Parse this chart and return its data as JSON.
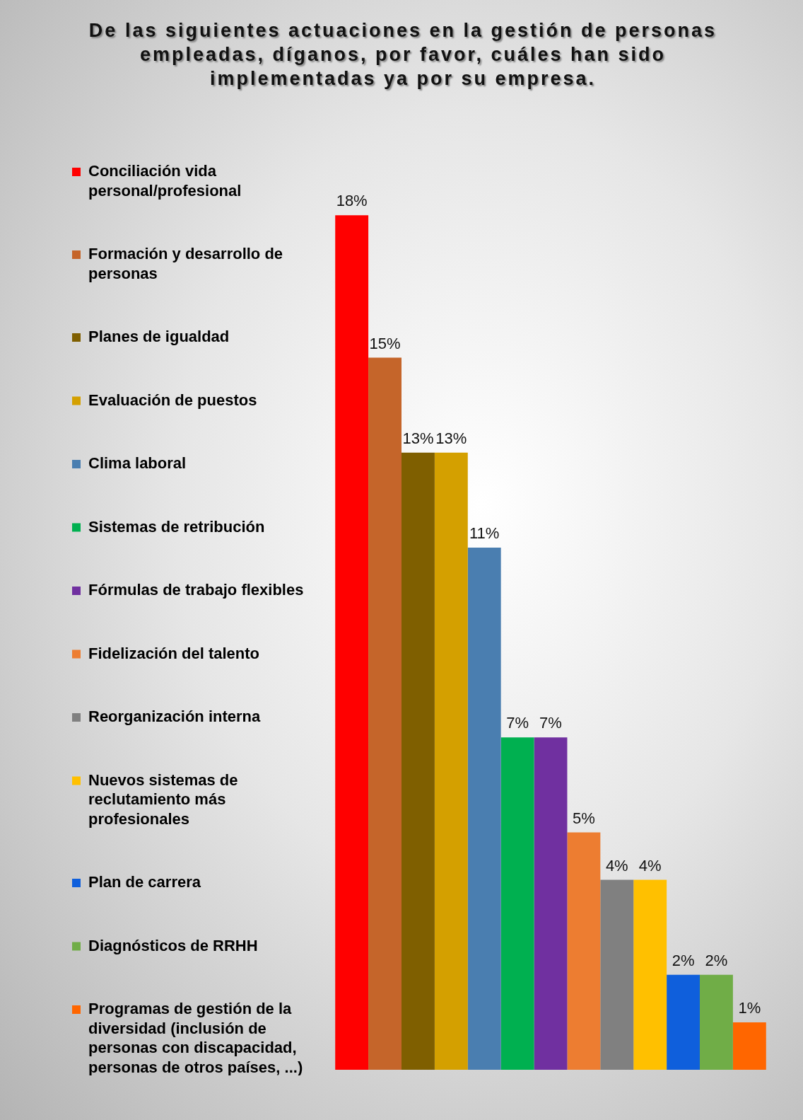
{
  "chart_data": {
    "type": "bar",
    "title": "De las siguientes actuaciones en la gestión de personas empleadas, díganos, por favor, cuáles han sido implementadas ya por su empresa.",
    "categories": [
      null
    ],
    "series": [
      {
        "name": "Conciliación vida personal/profesional",
        "color": "#ff0000",
        "values": [
          18
        ],
        "value_labels": [
          "18%"
        ]
      },
      {
        "name": "Formación y desarrollo de personas",
        "color": "#c5652a",
        "values": [
          15
        ],
        "value_labels": [
          "15%"
        ]
      },
      {
        "name": "Planes de igualdad",
        "color": "#7f5f00",
        "values": [
          13
        ],
        "value_labels": [
          "13%"
        ]
      },
      {
        "name": "Evaluación de puestos",
        "color": "#d4a000",
        "values": [
          13
        ],
        "value_labels": [
          "13%"
        ]
      },
      {
        "name": "Clima laboral",
        "color": "#4a7eb0",
        "values": [
          11
        ],
        "value_labels": [
          "11%"
        ]
      },
      {
        "name": "Sistemas de retribución",
        "color": "#00b050",
        "values": [
          7
        ],
        "value_labels": [
          "7%"
        ]
      },
      {
        "name": "Fórmulas de trabajo flexibles",
        "color": "#7030a0",
        "values": [
          7
        ],
        "value_labels": [
          "7%"
        ]
      },
      {
        "name": "Fidelización del talento",
        "color": "#ed7d31",
        "values": [
          5
        ],
        "value_labels": [
          "5%"
        ]
      },
      {
        "name": "Reorganización interna",
        "color": "#808080",
        "values": [
          4
        ],
        "value_labels": [
          "4%"
        ]
      },
      {
        "name": "Nuevos sistemas de reclutamiento más profesionales",
        "color": "#ffc000",
        "values": [
          4
        ],
        "value_labels": [
          "4%"
        ]
      },
      {
        "name": "Plan de carrera",
        "color": "#0f5fdc",
        "values": [
          2
        ],
        "value_labels": [
          "2%"
        ]
      },
      {
        "name": "Diagnósticos de RRHH",
        "color": "#70ad47",
        "values": [
          2
        ],
        "value_labels": [
          "2%"
        ]
      },
      {
        "name": "Programas de gestión de la diversidad (inclusión de personas con discapacidad, personas de otros países, ...)",
        "color": "#ff6600",
        "values": [
          1
        ],
        "value_labels": [
          "1%"
        ]
      }
    ],
    "tick_labels": false,
    "grid": false,
    "legend": "left"
  }
}
